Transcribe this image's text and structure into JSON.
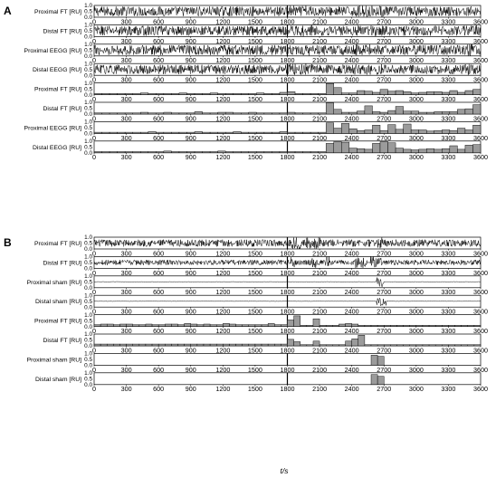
{
  "figure": {
    "xaxis_label": "t/s"
  },
  "chart_data": [
    {
      "panel": "A",
      "type": "line",
      "xlim": [
        0,
        3600
      ],
      "x_ticks": [
        "0",
        "300",
        "600",
        "900",
        "1200",
        "1500",
        "1800",
        "2100",
        "2400",
        "2700",
        "3000",
        "3300",
        "3600"
      ],
      "y_ticks": [
        "0.0",
        "0.5",
        "1.0"
      ],
      "ylim": [
        0,
        1
      ],
      "marker_line_x": 1800,
      "rows": [
        {
          "label": "Proximal FT [RU]",
          "kind": "trace",
          "amp": 0.42,
          "spikes": [
            1850,
            1960,
            2030,
            2450,
            2520,
            2600,
            2680
          ]
        },
        {
          "label": "Distal FT [RU]",
          "kind": "trace",
          "amp": 0.42,
          "spikes": [
            1850,
            1950,
            2050,
            2470,
            2600,
            2660,
            3450,
            3550
          ]
        },
        {
          "label": "Proximal EEGG [RU]",
          "kind": "trace",
          "amp": 0.42,
          "spikes": [
            1850,
            1980,
            2050,
            2450,
            2560,
            2660,
            3500
          ]
        },
        {
          "label": "Distal EEGG [RU]",
          "kind": "trace",
          "amp": 0.4,
          "spikes": [
            1850,
            1950,
            2030,
            2450,
            2560,
            2660,
            3480
          ]
        },
        {
          "label": "Proximal FT [RU]",
          "kind": "bars",
          "values": [
            0.1,
            0.1,
            0.1,
            0.1,
            0.1,
            0.1,
            0.15,
            0.1,
            0.1,
            0.1,
            0.1,
            0.15,
            0.1,
            0.1,
            0.1,
            0.15,
            0.1,
            0.1,
            0.1,
            0.1,
            0.1,
            0.15,
            0.1,
            0.1,
            0.2,
            0.25,
            0.1,
            0.1,
            0.1,
            0.1,
            0.95,
            0.6,
            0.15,
            0.15,
            0.35,
            0.3,
            0.2,
            0.45,
            0.3,
            0.35,
            0.25,
            0.15,
            0.2,
            0.25,
            0.25,
            0.2,
            0.35,
            0.2,
            0.35,
            0.45
          ]
        },
        {
          "label": "Distal FT [RU]",
          "kind": "bars",
          "values": [
            0.1,
            0.1,
            0.1,
            0.1,
            0.1,
            0.1,
            0.15,
            0.1,
            0.1,
            0.15,
            0.1,
            0.1,
            0.1,
            0.2,
            0.1,
            0.1,
            0.15,
            0.15,
            0.1,
            0.1,
            0.15,
            0.1,
            0.1,
            0.1,
            0.1,
            0.15,
            0.1,
            0.1,
            0.1,
            0.1,
            0.95,
            0.4,
            0.15,
            0.15,
            0.25,
            0.7,
            0.2,
            0.15,
            0.3,
            0.65,
            0.25,
            0.25,
            0.15,
            0.15,
            0.2,
            0.2,
            0.2,
            0.4,
            0.45,
            0.8
          ]
        },
        {
          "label": "Proximal EEGG [RU]",
          "kind": "bars",
          "values": [
            0.1,
            0.1,
            0.1,
            0.1,
            0.1,
            0.1,
            0.1,
            0.15,
            0.1,
            0.1,
            0.1,
            0.1,
            0.1,
            0.15,
            0.1,
            0.1,
            0.1,
            0.1,
            0.15,
            0.1,
            0.1,
            0.1,
            0.1,
            0.1,
            0.15,
            0.1,
            0.1,
            0.1,
            0.1,
            0.1,
            0.9,
            0.45,
            0.85,
            0.4,
            0.25,
            0.3,
            0.7,
            0.25,
            0.75,
            0.35,
            0.8,
            0.3,
            0.3,
            0.2,
            0.25,
            0.3,
            0.25,
            0.45,
            0.3,
            0.7
          ]
        },
        {
          "label": "Distal EEGG [RU]",
          "kind": "bars",
          "values": [
            0.1,
            0.1,
            0.1,
            0.1,
            0.1,
            0.1,
            0.1,
            0.1,
            0.1,
            0.15,
            0.1,
            0.1,
            0.1,
            0.1,
            0.1,
            0.1,
            0.15,
            0.1,
            0.1,
            0.1,
            0.1,
            0.1,
            0.1,
            0.1,
            0.1,
            0.1,
            0.1,
            0.1,
            0.1,
            0.1,
            0.8,
            0.95,
            0.9,
            0.4,
            0.35,
            0.3,
            0.8,
            0.95,
            0.85,
            0.4,
            0.3,
            0.25,
            0.3,
            0.35,
            0.3,
            0.35,
            0.6,
            0.3,
            0.65,
            0.7
          ]
        }
      ]
    },
    {
      "panel": "B",
      "type": "line",
      "xlim": [
        0,
        3600
      ],
      "x_ticks": [
        "0",
        "300",
        "600",
        "900",
        "1200",
        "1500",
        "1800",
        "2100",
        "2400",
        "2700",
        "3000",
        "3300",
        "3600"
      ],
      "y_ticks": [
        "0.0",
        "0.5",
        "1.0"
      ],
      "ylim": [
        0,
        1
      ],
      "marker_line_x": 1800,
      "rows": [
        {
          "label": "Proximal FT [RU]",
          "kind": "trace",
          "amp": 0.3,
          "spikes": [
            1850,
            1900,
            2000,
            2070,
            2100,
            2650,
            2680
          ]
        },
        {
          "label": "Distal FT [RU]",
          "kind": "trace",
          "amp": 0.22,
          "spikes": [
            1850,
            2050,
            2180,
            2450,
            2500,
            2600,
            2650
          ]
        },
        {
          "label": "Proximal sham [RU]",
          "kind": "flat",
          "spikes": [
            2650,
            2680
          ]
        },
        {
          "label": "Distal sham [RU]",
          "kind": "flat",
          "spikes": [
            2650,
            2670,
            2700
          ]
        },
        {
          "label": "Proximal FT [RU]",
          "kind": "bars",
          "values": [
            0.15,
            0.2,
            0.2,
            0.15,
            0.2,
            0.2,
            0.15,
            0.15,
            0.2,
            0.15,
            0.15,
            0.2,
            0.2,
            0.15,
            0.25,
            0.2,
            0.15,
            0.2,
            0.15,
            0.15,
            0.25,
            0.2,
            0.15,
            0.15,
            0.15,
            0.15,
            0.15,
            0.25,
            0.15,
            0.15,
            0.55,
            0.9,
            0.1,
            0.1,
            0.65,
            0.1,
            0.1,
            0.1,
            0.2,
            0.25,
            0.2,
            0.1,
            0.1,
            0.1,
            0.1,
            0.1,
            0.1,
            0.1,
            0.1,
            0.1,
            0.1,
            0.1,
            0.1,
            0.1,
            0.1,
            0.1,
            0.1,
            0.1,
            0.1,
            0.1
          ]
        },
        {
          "label": "Distal FT [RU]",
          "kind": "bars",
          "values": [
            0.15,
            0.15,
            0.15,
            0.15,
            0.15,
            0.15,
            0.15,
            0.15,
            0.15,
            0.15,
            0.15,
            0.15,
            0.15,
            0.15,
            0.15,
            0.15,
            0.15,
            0.15,
            0.15,
            0.15,
            0.15,
            0.15,
            0.15,
            0.15,
            0.15,
            0.15,
            0.15,
            0.15,
            0.15,
            0.15,
            0.55,
            0.35,
            0.1,
            0.1,
            0.4,
            0.1,
            0.1,
            0.1,
            0.1,
            0.4,
            0.6,
            0.9,
            0.1,
            0.1,
            0.1,
            0.1,
            0.1,
            0.1,
            0.1,
            0.1,
            0.1,
            0.1,
            0.1,
            0.1,
            0.1,
            0.1,
            0.1,
            0.1,
            0.1,
            0.1
          ]
        },
        {
          "label": "Proximal sham [RU]",
          "kind": "sparse",
          "bars": [
            {
              "x": 2580,
              "w": 60,
              "value": 0.85
            },
            {
              "x": 2640,
              "w": 60,
              "value": 0.75
            }
          ]
        },
        {
          "label": "Distal sham [RU]",
          "kind": "sparse",
          "bars": [
            {
              "x": 2580,
              "w": 60,
              "value": 0.85
            },
            {
              "x": 2640,
              "w": 60,
              "value": 0.7
            }
          ]
        }
      ]
    }
  ]
}
